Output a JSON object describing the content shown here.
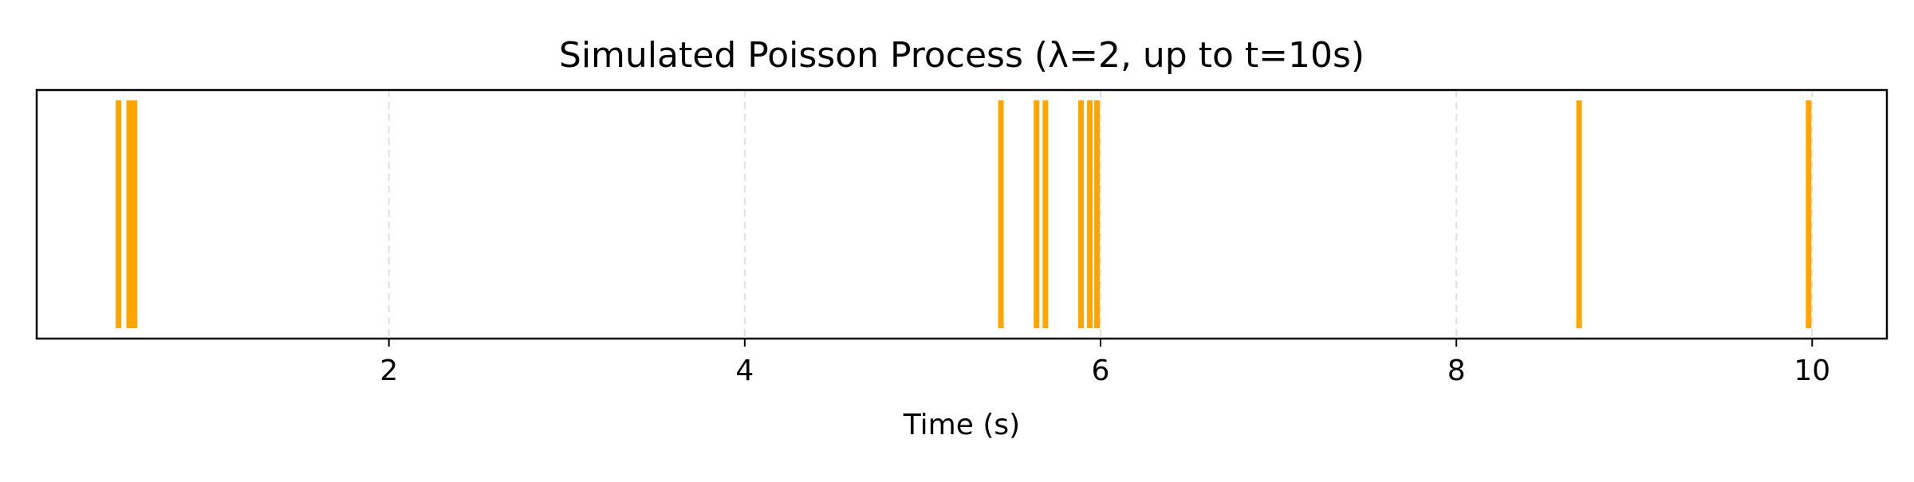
{
  "chart_data": {
    "type": "event",
    "title": "Simulated Poisson Process (λ=2, up to t=10s)",
    "xlabel": "Time (s)",
    "ylabel": "",
    "xlim": [
      0.02,
      10.42
    ],
    "xticks": [
      2,
      4,
      6,
      8,
      10
    ],
    "xtick_labels": [
      "2",
      "4",
      "6",
      "8",
      "10"
    ],
    "grid": "x-dashed",
    "event_color": "#FFA500",
    "grid_color": "#E0E0E0",
    "event_times": [
      0.48,
      0.54,
      0.57,
      5.44,
      5.64,
      5.69,
      5.89,
      5.94,
      5.98,
      8.69,
      9.98
    ]
  }
}
